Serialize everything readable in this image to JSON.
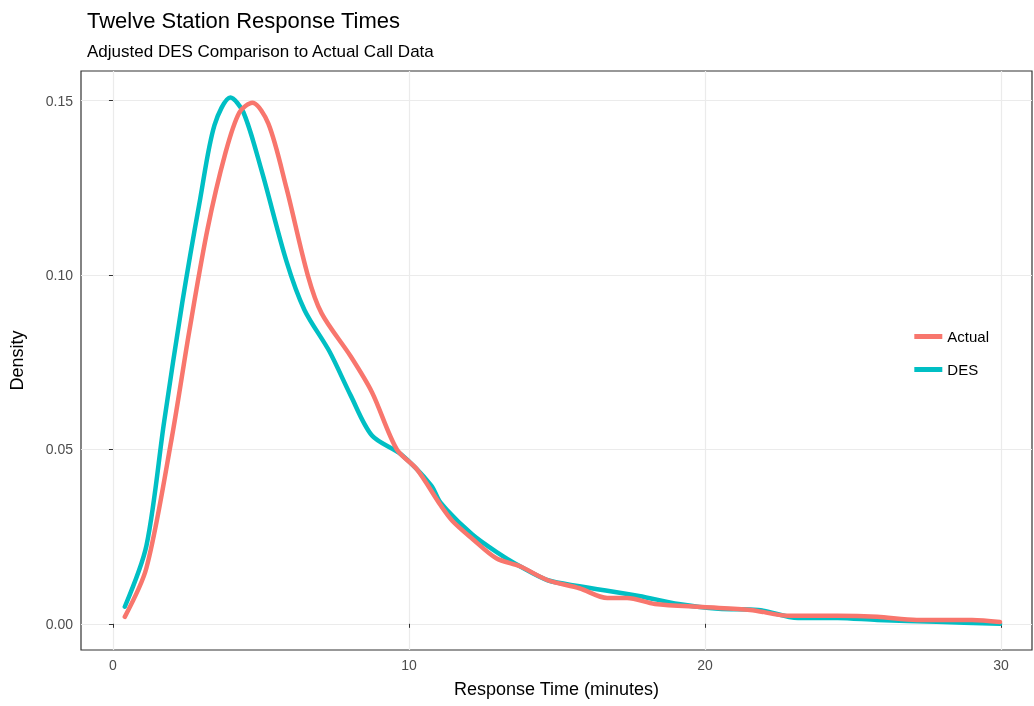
{
  "chart_data": {
    "type": "line",
    "title": "Twelve Station Response Times",
    "subtitle": "Adjusted DES Comparison to Actual Call Data",
    "xlabel": "Response Time (minutes)",
    "ylabel": "Density",
    "xlim": [
      -1.08,
      31.05
    ],
    "xticks": [
      0,
      10,
      20,
      30
    ],
    "ylim": [
      -0.0075,
      0.1585
    ],
    "yticks": [
      {
        "value": 0,
        "label": "0.00"
      },
      {
        "value": 0.05,
        "label": "0.05"
      },
      {
        "value": 0.1,
        "label": "0.10"
      },
      {
        "value": 0.15,
        "label": "0.15"
      }
    ],
    "grid": true,
    "legend": "right",
    "marker": "none",
    "line_style": "solid",
    "series": [
      {
        "name": "Actual",
        "color": "#f8766d",
        "x": [
          0.4,
          1.13,
          1.98,
          2.58,
          3.19,
          3.8,
          4.27,
          4.71,
          5.25,
          5.86,
          6.58,
          7.05,
          8.03,
          8.75,
          9.59,
          10.27,
          11.07,
          11.47,
          12.14,
          12.95,
          13.75,
          14.69,
          15.76,
          16.7,
          17.37,
          18.31,
          19.92,
          21.53,
          22.87,
          24.48,
          25.82,
          27.16,
          29.03,
          29.97
        ],
        "values": [
          0.002,
          0.016,
          0.053,
          0.084,
          0.113,
          0.135,
          0.1466,
          0.1494,
          0.1434,
          0.125,
          0.1,
          0.089,
          0.0767,
          0.0664,
          0.05,
          0.0443,
          0.034,
          0.0295,
          0.0244,
          0.0188,
          0.0165,
          0.0125,
          0.0102,
          0.0074,
          0.0074,
          0.0057,
          0.0048,
          0.004,
          0.0023,
          0.0023,
          0.002,
          0.0011,
          0.0011,
          0.0005
        ]
      },
      {
        "name": "DES",
        "color": "#00bfc4",
        "x": [
          0.4,
          1.13,
          1.73,
          2.34,
          2.95,
          3.43,
          3.97,
          4.41,
          5.02,
          5.86,
          6.47,
          7.32,
          8.03,
          8.75,
          9.73,
          10.75,
          11.07,
          12.14,
          13.08,
          13.75,
          14.69,
          15.76,
          17.77,
          19.11,
          20.46,
          21.8,
          23.14,
          24.48,
          25.82,
          27.83,
          29.97
        ],
        "values": [
          0.0049,
          0.0224,
          0.058,
          0.092,
          0.122,
          0.143,
          0.1509,
          0.1466,
          0.13,
          0.104,
          0.09,
          0.078,
          0.0655,
          0.054,
          0.0486,
          0.0397,
          0.0347,
          0.0256,
          0.0199,
          0.0165,
          0.0125,
          0.0108,
          0.008,
          0.0057,
          0.0043,
          0.004,
          0.0017,
          0.0017,
          0.0011,
          0.0006,
          0.0
        ]
      }
    ]
  }
}
